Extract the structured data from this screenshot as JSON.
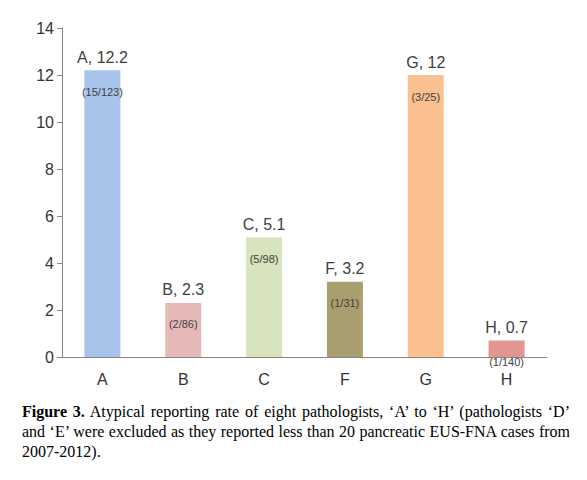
{
  "chart_data": {
    "type": "bar",
    "title": "Figure 3. Atypical reporting rate of eight pathologists, ‘A’ to ‘H’ (pathologists ‘D’ and ‘E’ were excluded as they reported less than 20 pancreatic EUS-FNA cases from 2007-2012).",
    "categories": [
      "A",
      "B",
      "C",
      "F",
      "G",
      "H"
    ],
    "values": [
      12.2,
      2.3,
      5.1,
      3.2,
      12,
      0.7
    ],
    "value_labels": [
      "A, 12.2",
      "B, 2.3",
      "C, 5.1",
      "F, 3.2",
      "G, 12",
      "H, 0.7"
    ],
    "annotations": [
      "(15/123)",
      "(2/86)",
      "(5/98)",
      "(1/31)",
      "(3/25)",
      "(1/140)"
    ],
    "colors": [
      "#a9c4eb",
      "#e6b9b8",
      "#d7e4bd",
      "#a99f6e",
      "#fac090",
      "#e3968f"
    ],
    "ylim": [
      0,
      14
    ],
    "yticks": [
      0,
      2,
      4,
      6,
      8,
      10,
      12,
      14
    ],
    "grid": false,
    "data_labels": true
  }
}
